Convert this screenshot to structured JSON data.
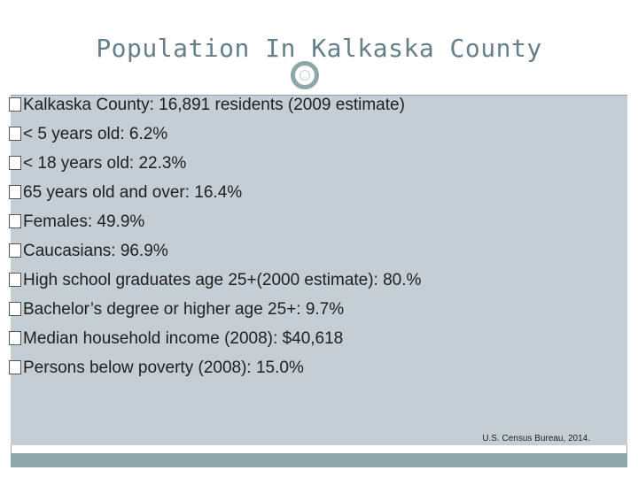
{
  "slide": {
    "title": "Population In Kalkaska County",
    "bullets": [
      "Kalkaska County: 16,891 residents (2009 estimate)",
      "< 5 years old: 6.2%",
      "< 18 years old: 22.3%",
      "65 years old and over: 16.4%",
      "Females: 49.9%",
      "Caucasians: 96.9%",
      "High school graduates age 25+(2000 estimate): 80.%",
      "Bachelor’s degree or higher age 25+: 9.7%",
      "Median household income (2008): $40,618",
      "Persons below poverty (2008): 15.0%"
    ],
    "source": "U.S. Census Bureau, 2014."
  },
  "colors": {
    "title": "#647f89",
    "content_background": "#c4ced4",
    "accent": "#8ea8aa"
  },
  "icons": {
    "bullet": "square-bullet-icon",
    "divider": "ring-icon"
  }
}
